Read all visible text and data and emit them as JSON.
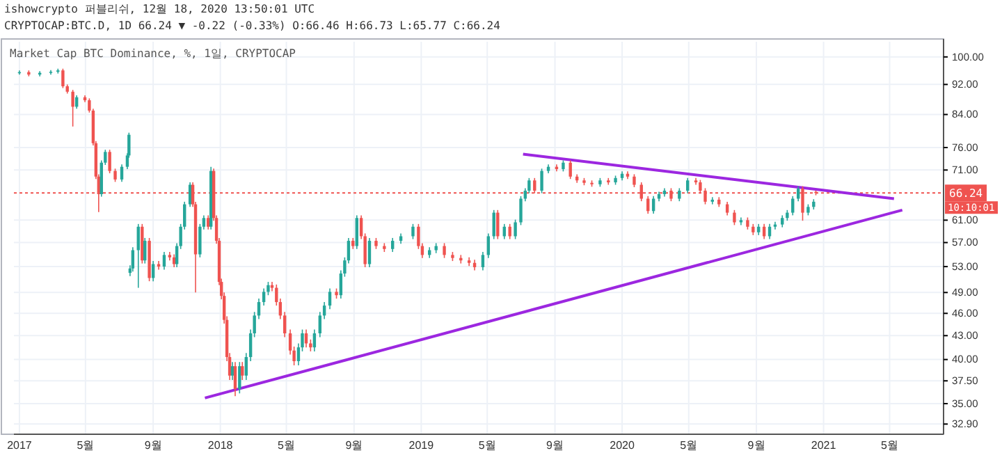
{
  "chart_data": {
    "type": "candlestick",
    "title": "Market Cap BTC Dominance, %, 1일, CRYPTOCAP",
    "annotations": [
      "ishowcrypto 퍼블리쉬, 12월 18, 2020 13:50:01 UTC",
      "CRYPTOCAP:BTC.D, 1D 66.24 ▼ -0.22 (-0.33%) O:66.46 H:66.73 L:65.77 C:66.24",
      "10:10:01"
    ],
    "log": true,
    "grid": true,
    "xlim": [
      "2016-12-22",
      "2021-08-07"
    ],
    "xticks": [
      {
        "value": "2017-01-01",
        "label": "2017"
      },
      {
        "value": "2017-05-01",
        "label": "5월"
      },
      {
        "value": "2017-09-01",
        "label": "9월"
      },
      {
        "value": "2018-01-01",
        "label": "2018"
      },
      {
        "value": "2018-05-01",
        "label": "5월"
      },
      {
        "value": "2018-09-01",
        "label": "9월"
      },
      {
        "value": "2019-01-01",
        "label": "2019"
      },
      {
        "value": "2019-05-01",
        "label": "5월"
      },
      {
        "value": "2019-09-01",
        "label": "9월"
      },
      {
        "value": "2020-01-01",
        "label": "2020"
      },
      {
        "value": "2020-05-01",
        "label": "5월"
      },
      {
        "value": "2020-09-01",
        "label": "9월"
      },
      {
        "value": "2021-01-01",
        "label": "2021"
      },
      {
        "value": "2021-05-01",
        "label": "5월"
      }
    ],
    "ylim": [
      31.9,
      104.7
    ],
    "yticks": [
      {
        "value": 32.9,
        "label": "32.90"
      },
      {
        "value": 35,
        "label": "35.00"
      },
      {
        "value": 37.5,
        "label": "37.50"
      },
      {
        "value": 40,
        "label": "40.00"
      },
      {
        "value": 43,
        "label": "43.00"
      },
      {
        "value": 46,
        "label": "46.00"
      },
      {
        "value": 49,
        "label": "49.00"
      },
      {
        "value": 53,
        "label": "53.00"
      },
      {
        "value": 57,
        "label": "57.00"
      },
      {
        "value": 61,
        "label": "61.00"
      },
      {
        "value": 71,
        "label": "71.00"
      },
      {
        "value": 76,
        "label": "76.00"
      },
      {
        "value": 84,
        "label": "84.00"
      },
      {
        "value": 92,
        "label": "92.00"
      },
      {
        "value": 100,
        "label": "100.00"
      }
    ],
    "ref_lines": [
      {
        "axis": "y",
        "value": 66.24,
        "label": "66.24",
        "color": "#ef5350",
        "line_style": "dotted"
      }
    ],
    "x": [
      "2017-01-01",
      "2017-01-18",
      "2017-02-07",
      "2017-02-27",
      "2017-03-12",
      "2017-03-21",
      "2017-03-29",
      "2017-04-08",
      "2017-04-15",
      "2017-04-30",
      "2017-05-08",
      "2017-05-15",
      "2017-05-20",
      "2017-05-25",
      "2017-05-30",
      "2017-06-06",
      "2017-06-14",
      "2017-06-24",
      "2017-07-06",
      "2017-07-16",
      "2017-07-19",
      "2017-07-21",
      "2017-07-26",
      "2017-08-05",
      "2017-08-12",
      "2017-08-17",
      "2017-08-25",
      "2017-09-01",
      "2017-09-11",
      "2017-09-21",
      "2017-10-01",
      "2017-10-09",
      "2017-10-14",
      "2017-10-21",
      "2017-10-28",
      "2017-11-07",
      "2017-11-12",
      "2017-11-17",
      "2017-11-25",
      "2017-12-02",
      "2017-12-10",
      "2017-12-15",
      "2017-12-20",
      "2017-12-25",
      "2017-12-30",
      "2018-01-03",
      "2018-01-08",
      "2018-01-13",
      "2018-01-18",
      "2018-01-23",
      "2018-01-28",
      "2018-02-05",
      "2018-02-10",
      "2018-02-17",
      "2018-02-25",
      "2018-03-04",
      "2018-03-12",
      "2018-03-21",
      "2018-03-29",
      "2018-04-05",
      "2018-04-13",
      "2018-04-20",
      "2018-04-28",
      "2018-05-08",
      "2018-05-15",
      "2018-05-23",
      "2018-05-30",
      "2018-06-06",
      "2018-06-14",
      "2018-06-21",
      "2018-07-01",
      "2018-07-09",
      "2018-07-19",
      "2018-07-31",
      "2018-08-08",
      "2018-08-15",
      "2018-08-22",
      "2018-08-30",
      "2018-09-06",
      "2018-09-14",
      "2018-09-21",
      "2018-09-29",
      "2018-10-11",
      "2018-10-26",
      "2018-11-10",
      "2018-11-25",
      "2018-12-17",
      "2018-12-27",
      "2019-01-03",
      "2019-01-16",
      "2019-01-28",
      "2019-02-12",
      "2019-02-27",
      "2019-03-14",
      "2019-03-29",
      "2019-04-08",
      "2019-04-23",
      "2019-05-03",
      "2019-05-13",
      "2019-05-20",
      "2019-06-01",
      "2019-06-11",
      "2019-06-21",
      "2019-07-01",
      "2019-07-09",
      "2019-07-16",
      "2019-07-26",
      "2019-08-08",
      "2019-08-20",
      "2019-09-04",
      "2019-09-16",
      "2019-09-29",
      "2019-10-11",
      "2019-10-24",
      "2019-11-07",
      "2019-11-22",
      "2019-12-07",
      "2019-12-20",
      "2020-01-01",
      "2020-01-11",
      "2020-01-23",
      "2020-02-05",
      "2020-02-17",
      "2020-02-27",
      "2020-03-08",
      "2020-03-18",
      "2020-03-30",
      "2020-04-14",
      "2020-04-29",
      "2020-05-14",
      "2020-05-22",
      "2020-05-31",
      "2020-06-13",
      "2020-06-25",
      "2020-07-10",
      "2020-07-23",
      "2020-08-04",
      "2020-08-16",
      "2020-08-26",
      "2020-09-05",
      "2020-09-15",
      "2020-09-25",
      "2020-10-05",
      "2020-10-18",
      "2020-10-27",
      "2020-11-06",
      "2020-11-16",
      "2020-11-24",
      "2020-12-04",
      "2020-12-14",
      "2020-12-18"
    ],
    "ohlc": [
      [
        95.3,
        96.0,
        94.8,
        95.5
      ],
      [
        95.5,
        96.0,
        94.3,
        94.8
      ],
      [
        94.8,
        95.8,
        94.3,
        95.3
      ],
      [
        95.3,
        96.1,
        94.8,
        95.6
      ],
      [
        95.6,
        96.5,
        95.1,
        96.0
      ],
      [
        96.0,
        96.5,
        91.0,
        91.5
      ],
      [
        91.5,
        92.0,
        89.5,
        90.0
      ],
      [
        90.0,
        90.5,
        81.0,
        86.0
      ],
      [
        86.0,
        89.0,
        85.5,
        88.5
      ],
      [
        88.5,
        89.0,
        87.2,
        87.7
      ],
      [
        87.7,
        88.2,
        84.5,
        85.0
      ],
      [
        85.0,
        85.5,
        76.5,
        77.0
      ],
      [
        77.0,
        77.5,
        69.1,
        69.6
      ],
      [
        69.6,
        70.1,
        62.5,
        66.0
      ],
      [
        66.0,
        73.1,
        65.5,
        72.6
      ],
      [
        72.6,
        75.5,
        72.1,
        75.0
      ],
      [
        75.0,
        75.5,
        70.3,
        70.8
      ],
      [
        70.8,
        71.3,
        68.5,
        69.0
      ],
      [
        69.0,
        72.2,
        68.5,
        71.7
      ],
      [
        71.7,
        74.7,
        71.2,
        74.2
      ],
      [
        74.2,
        79.5,
        73.7,
        79.0
      ],
      [
        52.0,
        53.2,
        51.5,
        52.7
      ],
      [
        52.7,
        56.2,
        52.2,
        55.7
      ],
      [
        55.7,
        60.3,
        49.7,
        59.8
      ],
      [
        59.8,
        60.3,
        53.5,
        54.0
      ],
      [
        54.0,
        57.8,
        53.5,
        57.3
      ],
      [
        57.3,
        57.8,
        50.7,
        51.2
      ],
      [
        51.2,
        53.9,
        50.7,
        53.4
      ],
      [
        53.4,
        53.9,
        52.5,
        53.0
      ],
      [
        53.0,
        55.4,
        52.5,
        54.9
      ],
      [
        54.9,
        55.4,
        54.0,
        54.5
      ],
      [
        54.5,
        55.0,
        52.9,
        53.4
      ],
      [
        53.4,
        56.9,
        52.9,
        56.4
      ],
      [
        56.4,
        60.3,
        55.9,
        59.8
      ],
      [
        59.8,
        64.5,
        59.3,
        64.0
      ],
      [
        64.0,
        68.4,
        63.5,
        67.9
      ],
      [
        67.9,
        68.4,
        63.5,
        64.0
      ],
      [
        64.0,
        64.5,
        49.0,
        55.0
      ],
      [
        55.0,
        60.3,
        54.5,
        59.8
      ],
      [
        59.8,
        61.9,
        59.3,
        61.4
      ],
      [
        61.4,
        61.9,
        59.3,
        59.8
      ],
      [
        59.8,
        71.7,
        59.3,
        70.8
      ],
      [
        70.8,
        71.3,
        60.9,
        61.4
      ],
      [
        61.4,
        61.9,
        56.8,
        57.3
      ],
      [
        57.3,
        57.8,
        50.1,
        50.6
      ],
      [
        50.6,
        51.1,
        48.0,
        48.5
      ],
      [
        48.5,
        49.0,
        44.6,
        45.1
      ],
      [
        45.1,
        45.6,
        39.8,
        40.3
      ],
      [
        40.3,
        40.8,
        37.6,
        38.1
      ],
      [
        38.1,
        39.7,
        37.6,
        39.2
      ],
      [
        39.2,
        39.7,
        35.8,
        36.6
      ],
      [
        36.6,
        39.7,
        36.1,
        39.2
      ],
      [
        39.2,
        39.7,
        37.6,
        38.1
      ],
      [
        38.1,
        40.8,
        37.6,
        40.3
      ],
      [
        40.3,
        43.8,
        39.8,
        43.3
      ],
      [
        43.3,
        46.2,
        42.8,
        45.7
      ],
      [
        45.7,
        48.1,
        45.2,
        47.6
      ],
      [
        47.6,
        49.6,
        47.1,
        49.1
      ],
      [
        49.1,
        50.6,
        48.6,
        50.1
      ],
      [
        50.1,
        50.6,
        49.2,
        49.7
      ],
      [
        49.7,
        50.2,
        47.1,
        47.6
      ],
      [
        47.6,
        48.1,
        45.2,
        45.7
      ],
      [
        45.7,
        46.2,
        42.8,
        43.3
      ],
      [
        43.3,
        43.8,
        40.6,
        41.1
      ],
      [
        41.1,
        41.6,
        39.3,
        39.8
      ],
      [
        39.8,
        42.0,
        39.3,
        41.5
      ],
      [
        41.5,
        43.8,
        41.0,
        43.3
      ],
      [
        43.3,
        43.8,
        41.5,
        42.0
      ],
      [
        42.0,
        42.5,
        41.0,
        41.5
      ],
      [
        41.5,
        43.8,
        41.0,
        43.3
      ],
      [
        43.3,
        46.2,
        42.8,
        45.7
      ],
      [
        45.7,
        47.6,
        45.2,
        47.1
      ],
      [
        47.1,
        49.6,
        46.6,
        49.1
      ],
      [
        49.1,
        49.6,
        48.1,
        48.6
      ],
      [
        48.6,
        52.4,
        48.1,
        51.9
      ],
      [
        51.9,
        54.5,
        51.4,
        54.0
      ],
      [
        54.0,
        57.8,
        53.5,
        57.3
      ],
      [
        57.3,
        57.8,
        55.9,
        56.4
      ],
      [
        56.4,
        61.9,
        55.9,
        61.4
      ],
      [
        61.4,
        61.9,
        57.6,
        58.1
      ],
      [
        58.1,
        58.6,
        52.9,
        53.4
      ],
      [
        53.4,
        57.8,
        52.9,
        57.3
      ],
      [
        57.3,
        57.8,
        55.9,
        56.4
      ],
      [
        56.4,
        56.9,
        55.4,
        55.9
      ],
      [
        55.9,
        57.8,
        55.4,
        57.3
      ],
      [
        57.3,
        58.6,
        56.8,
        58.1
      ],
      [
        58.1,
        60.3,
        57.6,
        59.8
      ],
      [
        59.8,
        60.3,
        55.9,
        56.4
      ],
      [
        56.4,
        56.9,
        54.4,
        54.9
      ],
      [
        54.9,
        56.2,
        54.4,
        55.7
      ],
      [
        55.7,
        56.9,
        55.2,
        56.4
      ],
      [
        56.4,
        56.9,
        54.4,
        54.9
      ],
      [
        54.9,
        55.4,
        53.9,
        54.4
      ],
      [
        54.4,
        54.9,
        53.5,
        54.0
      ],
      [
        54.0,
        54.5,
        53.1,
        53.6
      ],
      [
        53.6,
        54.1,
        52.4,
        52.9
      ],
      [
        52.9,
        55.4,
        52.4,
        54.9
      ],
      [
        54.9,
        58.6,
        54.4,
        58.1
      ],
      [
        58.1,
        62.9,
        57.6,
        62.4
      ],
      [
        62.4,
        62.9,
        57.6,
        58.1
      ],
      [
        58.1,
        60.3,
        57.6,
        59.8
      ],
      [
        59.8,
        60.3,
        57.6,
        58.1
      ],
      [
        58.1,
        61.1,
        57.6,
        60.6
      ],
      [
        60.6,
        65.6,
        60.1,
        65.1
      ],
      [
        65.1,
        67.2,
        64.6,
        66.7
      ],
      [
        66.7,
        69.3,
        66.2,
        68.8
      ],
      [
        68.8,
        69.3,
        66.2,
        66.7
      ],
      [
        66.7,
        71.3,
        66.2,
        70.8
      ],
      [
        70.8,
        72.2,
        70.3,
        71.7
      ],
      [
        71.7,
        72.2,
        70.7,
        71.2
      ],
      [
        71.2,
        73.1,
        70.7,
        72.6
      ],
      [
        72.6,
        73.1,
        69.1,
        69.6
      ],
      [
        69.6,
        70.1,
        68.3,
        68.8
      ],
      [
        68.8,
        69.3,
        67.8,
        68.3
      ],
      [
        68.3,
        68.8,
        67.5,
        68.0
      ],
      [
        68.0,
        69.3,
        67.5,
        68.8
      ],
      [
        68.8,
        69.3,
        67.9,
        68.4
      ],
      [
        68.4,
        69.8,
        67.9,
        69.3
      ],
      [
        69.3,
        70.7,
        68.8,
        70.2
      ],
      [
        70.2,
        70.7,
        69.1,
        69.6
      ],
      [
        69.6,
        70.1,
        67.4,
        67.9
      ],
      [
        67.9,
        68.4,
        64.6,
        65.1
      ],
      [
        65.1,
        65.6,
        62.2,
        62.7
      ],
      [
        62.7,
        65.6,
        62.2,
        65.1
      ],
      [
        65.1,
        66.5,
        64.6,
        66.0
      ],
      [
        66.0,
        67.2,
        65.5,
        66.7
      ],
      [
        66.7,
        67.2,
        64.6,
        65.1
      ],
      [
        65.1,
        67.2,
        64.6,
        66.7
      ],
      [
        66.7,
        69.3,
        66.2,
        68.8
      ],
      [
        68.8,
        69.3,
        67.9,
        68.4
      ],
      [
        68.4,
        68.9,
        66.2,
        66.7
      ],
      [
        66.7,
        67.2,
        64.0,
        64.5
      ],
      [
        64.5,
        65.4,
        64.0,
        64.9
      ],
      [
        64.9,
        65.4,
        63.5,
        64.0
      ],
      [
        64.0,
        64.5,
        61.9,
        62.4
      ],
      [
        62.4,
        62.9,
        60.1,
        60.6
      ],
      [
        60.6,
        61.5,
        60.1,
        61.0
      ],
      [
        61.0,
        61.5,
        59.3,
        59.8
      ],
      [
        59.8,
        60.3,
        58.3,
        58.8
      ],
      [
        58.8,
        60.3,
        58.3,
        59.8
      ],
      [
        59.8,
        60.3,
        57.6,
        58.1
      ],
      [
        58.1,
        60.3,
        57.6,
        59.8
      ],
      [
        59.8,
        60.7,
        59.3,
        60.2
      ],
      [
        60.2,
        61.9,
        59.7,
        61.4
      ],
      [
        61.4,
        62.9,
        60.9,
        62.4
      ],
      [
        62.4,
        65.6,
        61.9,
        65.1
      ],
      [
        65.1,
        67.6,
        64.6,
        67.1
      ],
      [
        67.1,
        67.6,
        60.9,
        62.4
      ],
      [
        62.4,
        64.0,
        61.9,
        63.5
      ],
      [
        63.5,
        65.0,
        63.0,
        64.5
      ],
      [
        66.46,
        66.73,
        65.77,
        66.24
      ]
    ],
    "series": [
      {
        "type": "line",
        "color": "#9c27e0",
        "x": [
          "2019-07-05",
          "2021-05-09"
        ],
        "values": [
          74.5,
          65.1
        ]
      },
      {
        "type": "line",
        "color": "#9c27e0",
        "x": [
          "2017-12-04",
          "2021-05-24"
        ],
        "values": [
          35.6,
          62.9
        ]
      }
    ]
  }
}
